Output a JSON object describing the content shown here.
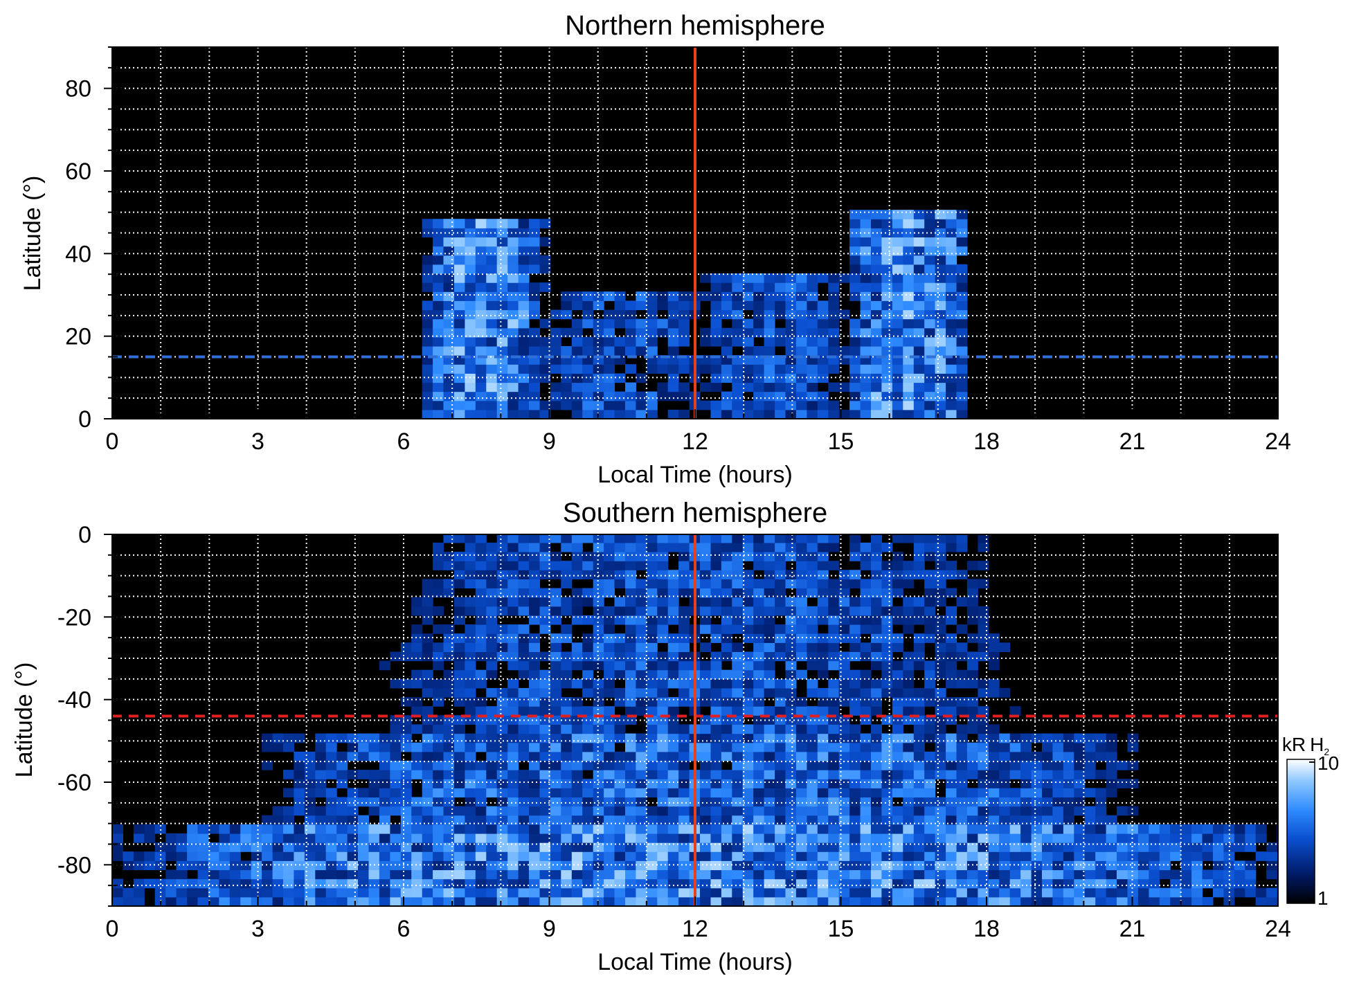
{
  "chart_data": [
    {
      "type": "heatmap",
      "title": "Northern hemisphere",
      "xlabel": "Local Time (hours)",
      "ylabel": "Latitude (°)",
      "xlim": [
        0,
        24
      ],
      "ylim": [
        0,
        90
      ],
      "xticks": [
        "0",
        "3",
        "6",
        "9",
        "12",
        "15",
        "18",
        "21",
        "24"
      ],
      "yticks": [
        "0",
        "20",
        "40",
        "60",
        "80"
      ],
      "grid": true,
      "background_color": "#000000",
      "noon_line": {
        "x": 12,
        "color": "#e8401a"
      },
      "reference_line": {
        "y": 15,
        "style": "dashed",
        "color": "#2f6fd8"
      },
      "emission_regions": [
        {
          "x": [
            6.3,
            8.8
          ],
          "y": [
            0,
            48
          ],
          "level": "bright"
        },
        {
          "x": [
            8.8,
            12
          ],
          "y": [
            0,
            30
          ],
          "level": "patchy"
        },
        {
          "x": [
            12,
            15
          ],
          "y": [
            0,
            33
          ],
          "level": "patchy"
        },
        {
          "x": [
            15,
            17.6
          ],
          "y": [
            0,
            50
          ],
          "level": "bright"
        }
      ]
    },
    {
      "type": "heatmap",
      "title": "Southern hemisphere",
      "xlabel": "Local Time (hours)",
      "ylabel": "Latitude (°)",
      "xlim": [
        0,
        24
      ],
      "ylim": [
        -90,
        0
      ],
      "xticks": [
        "0",
        "3",
        "6",
        "9",
        "12",
        "15",
        "18",
        "21",
        "24"
      ],
      "yticks": [
        "0",
        "-20",
        "-40",
        "-60",
        "-80"
      ],
      "grid": true,
      "background_color": "#000000",
      "noon_line": {
        "x": 12,
        "color": "#e8401a"
      },
      "reference_line": {
        "y": -44,
        "style": "dashed",
        "color": "#e02020"
      },
      "emission_regions": [
        {
          "x": [
            0,
            24
          ],
          "y": [
            -90,
            -72
          ],
          "level": "bright"
        },
        {
          "x": [
            3,
            21
          ],
          "y": [
            -72,
            -50
          ],
          "level": "arcs"
        },
        {
          "x": [
            5.5,
            18.5
          ],
          "y": [
            -50,
            -25
          ],
          "level": "patchy"
        },
        {
          "x": [
            6,
            18
          ],
          "y": [
            -25,
            0
          ],
          "level": "patchy"
        }
      ]
    }
  ],
  "colorbar": {
    "label_prefix": "kR",
    "label_main": "H",
    "label_sub": "2",
    "max_label": "10",
    "min_label": "1",
    "scale": "log",
    "range": [
      1,
      10
    ],
    "colors": [
      "#000000",
      "#001a66",
      "#0a4fd0",
      "#2f8cff",
      "#8fc8ff",
      "#ffffff"
    ]
  }
}
